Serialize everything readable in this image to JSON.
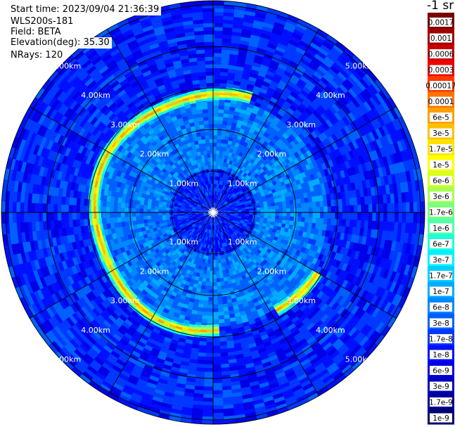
{
  "header": {
    "start_time": "Start time: 2023/09/04 21:36:39",
    "device": "WLS200s-181",
    "field": "Field: BETA",
    "elevation": "Elevation(deg): 35.30",
    "nrays": "NRays: 120"
  },
  "colorbar": {
    "unit_label": "-1 sr",
    "ticks": [
      "0.0017",
      "0.001",
      "0.0006",
      "0.0003",
      "0.00017",
      "0.0001",
      "6e-5",
      "3e-5",
      "1.7e-5",
      "1e-5",
      "6e-6",
      "3e-6",
      "1.7e-6",
      "1e-6",
      "6e-7",
      "3e-7",
      "1.7e-7",
      "1e-7",
      "6e-8",
      "3e-8",
      "1.7e-8",
      "1e-8",
      "6e-9",
      "3e-9",
      "1.7e-9",
      "1e-9"
    ],
    "colors": [
      "#7a0000",
      "#9e0000",
      "#c80000",
      "#ef0000",
      "#ff3800",
      "#ff7200",
      "#ff9f00",
      "#ffc000",
      "#ffe200",
      "#ffff00",
      "#d8ff1f",
      "#a8ff50",
      "#7cff7c",
      "#50ffa8",
      "#1fffd8",
      "#00f0ff",
      "#00d0ff",
      "#00acff",
      "#0088ff",
      "#0060ff",
      "#0038ff",
      "#0010ff",
      "#0000e6",
      "#0000c0",
      "#00009a",
      "#000070"
    ]
  },
  "chart_data": {
    "type": "heatmap",
    "projection": "polar",
    "field": "BETA",
    "elevation_deg": 35.3,
    "n_rays": 120,
    "range_rings_km": [
      1.0,
      2.0,
      3.0,
      4.0,
      5.0
    ],
    "ring_labels": [
      "1.00km",
      "2.00km",
      "3.00km",
      "4.00km",
      "5.00km"
    ],
    "max_range_km": 5.1,
    "background_beta": 1e-08,
    "inner_beta": 1.7e-08,
    "mid_beta": 6e-08,
    "outer_beta": 1.7e-08,
    "cloud_band": {
      "range_km": 2.85,
      "azimuth_start_deg": 175,
      "azimuth_end_deg": 15,
      "peak_beta": 0.0001,
      "extra_segment_azimuth_deg": [
        120,
        145
      ]
    },
    "azimuth_gridlines_deg": [
      0,
      30,
      60,
      90,
      120,
      150,
      180,
      210,
      240,
      270,
      300,
      330
    ]
  }
}
